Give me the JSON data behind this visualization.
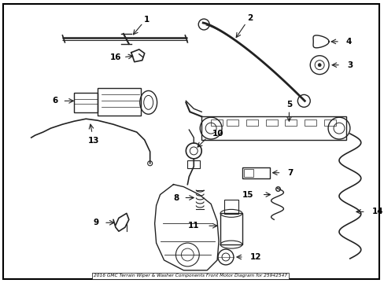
{
  "title": "2016 GMC Terrain Wiper & Washer Components Front Motor Diagram for 25942547",
  "bg_color": "#ffffff",
  "border_color": "#000000",
  "line_color": "#222222",
  "figsize": [
    4.89,
    3.6
  ],
  "dpi": 100
}
